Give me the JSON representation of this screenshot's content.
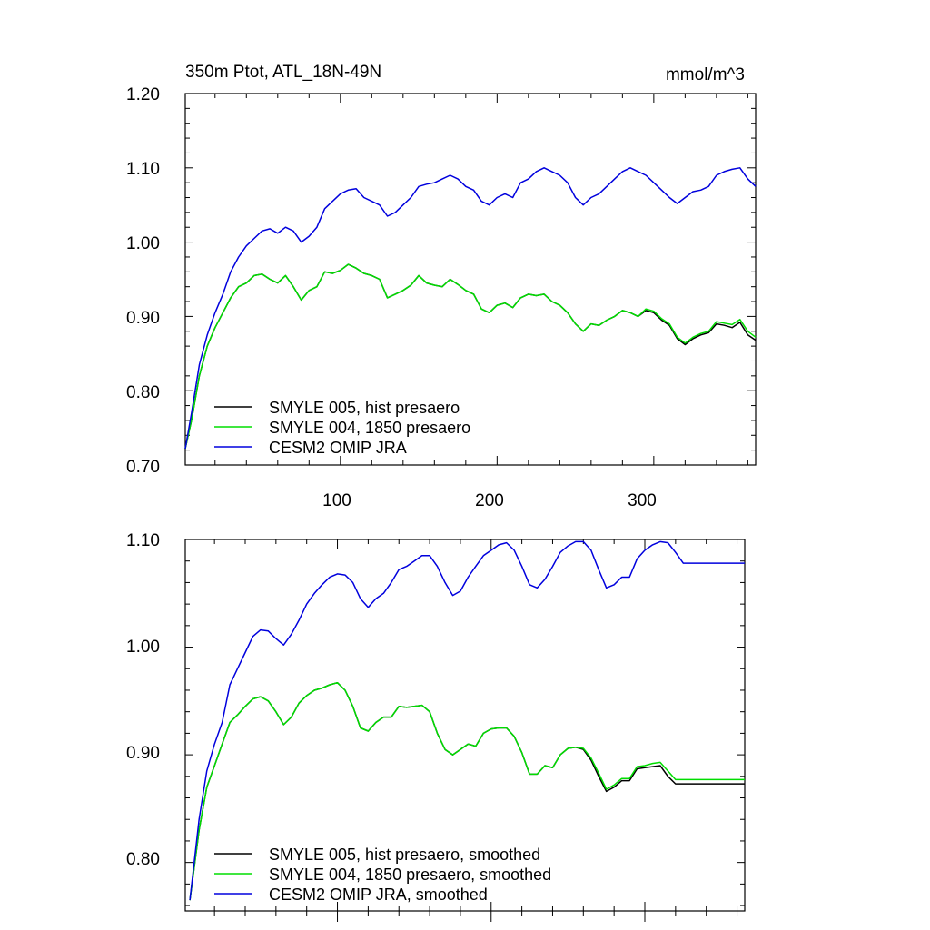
{
  "colors": {
    "hist": "#000000",
    "pre1850": "#00dd00",
    "omip": "#0000dd"
  },
  "chart_data": [
    {
      "type": "line",
      "title": "350m Ptot, ATL_18N-49N",
      "units": "mmol/m^3",
      "xlim": [
        1,
        365
      ],
      "ylim": [
        0.7,
        1.2
      ],
      "yticks": [
        0.7,
        0.8,
        0.9,
        1.0,
        1.1,
        1.2
      ],
      "ytick_labels": [
        "0.70",
        "0.80",
        "0.90",
        "1.00",
        "1.10",
        "1.20"
      ],
      "xticks": [
        100,
        200,
        300
      ],
      "xtick_labels": [
        "100",
        "200",
        "300"
      ],
      "x": [
        1,
        5,
        10,
        15,
        20,
        25,
        30,
        35,
        40,
        45,
        50,
        55,
        60,
        65,
        70,
        75,
        80,
        85,
        90,
        95,
        100,
        105,
        110,
        115,
        120,
        125,
        130,
        135,
        140,
        145,
        150,
        155,
        160,
        165,
        170,
        175,
        180,
        185,
        190,
        195,
        200,
        205,
        210,
        215,
        220,
        225,
        230,
        235,
        240,
        245,
        250,
        255,
        260,
        265,
        270,
        275,
        280,
        285,
        290,
        295,
        300,
        305,
        310,
        315,
        320,
        325,
        330,
        335,
        340,
        345,
        350,
        355,
        360,
        365
      ],
      "series": [
        {
          "name": "SMYLE 005, hist presaero",
          "color_key": "hist",
          "values": [
            0.722,
            0.76,
            0.82,
            0.86,
            0.885,
            0.905,
            0.925,
            0.94,
            0.945,
            0.955,
            0.957,
            0.95,
            0.945,
            0.955,
            0.94,
            0.922,
            0.935,
            0.94,
            0.96,
            0.958,
            0.962,
            0.97,
            0.965,
            0.958,
            0.955,
            0.95,
            0.925,
            0.93,
            0.935,
            0.942,
            0.955,
            0.945,
            0.942,
            0.94,
            0.95,
            0.943,
            0.935,
            0.93,
            0.91,
            0.905,
            0.915,
            0.918,
            0.912,
            0.925,
            0.93,
            0.928,
            0.93,
            0.92,
            0.915,
            0.905,
            0.89,
            0.88,
            0.89,
            0.888,
            0.895,
            0.9,
            0.908,
            0.905,
            0.9,
            0.908,
            0.905,
            0.895,
            0.888,
            0.87,
            0.862,
            0.87,
            0.875,
            0.878,
            0.89,
            0.888,
            0.885,
            0.892,
            0.875,
            0.868
          ]
        },
        {
          "name": "SMYLE 004, 1850 presaero",
          "color_key": "pre1850",
          "values": [
            0.722,
            0.76,
            0.82,
            0.86,
            0.885,
            0.905,
            0.925,
            0.94,
            0.945,
            0.955,
            0.957,
            0.95,
            0.945,
            0.955,
            0.94,
            0.922,
            0.935,
            0.94,
            0.96,
            0.958,
            0.962,
            0.97,
            0.965,
            0.958,
            0.955,
            0.95,
            0.925,
            0.93,
            0.935,
            0.942,
            0.955,
            0.945,
            0.942,
            0.94,
            0.95,
            0.943,
            0.935,
            0.93,
            0.91,
            0.905,
            0.915,
            0.918,
            0.912,
            0.925,
            0.93,
            0.928,
            0.93,
            0.92,
            0.915,
            0.905,
            0.89,
            0.88,
            0.89,
            0.888,
            0.895,
            0.9,
            0.908,
            0.905,
            0.9,
            0.91,
            0.907,
            0.897,
            0.89,
            0.872,
            0.864,
            0.872,
            0.877,
            0.88,
            0.893,
            0.891,
            0.889,
            0.896,
            0.88,
            0.872
          ]
        },
        {
          "name": "CESM2 OMIP JRA",
          "color_key": "omip",
          "values": [
            0.722,
            0.77,
            0.835,
            0.875,
            0.905,
            0.93,
            0.96,
            0.98,
            0.995,
            1.005,
            1.015,
            1.018,
            1.012,
            1.02,
            1.015,
            1.0,
            1.008,
            1.02,
            1.045,
            1.055,
            1.065,
            1.07,
            1.072,
            1.06,
            1.055,
            1.05,
            1.035,
            1.04,
            1.05,
            1.06,
            1.075,
            1.078,
            1.08,
            1.085,
            1.09,
            1.085,
            1.075,
            1.07,
            1.055,
            1.05,
            1.06,
            1.065,
            1.06,
            1.08,
            1.085,
            1.095,
            1.1,
            1.095,
            1.09,
            1.08,
            1.06,
            1.05,
            1.06,
            1.065,
            1.075,
            1.085,
            1.095,
            1.1,
            1.095,
            1.09,
            1.08,
            1.07,
            1.06,
            1.052,
            1.06,
            1.068,
            1.07,
            1.075,
            1.09,
            1.095,
            1.098,
            1.1,
            1.085,
            1.075
          ]
        }
      ],
      "legend": [
        "SMYLE 005, hist presaero",
        "SMYLE 004, 1850 presaero",
        "CESM2 OMIP JRA"
      ],
      "legend_position": "bottom-left"
    },
    {
      "type": "line",
      "title": "",
      "xlim": [
        1,
        365
      ],
      "ylim": [
        0.755,
        1.1
      ],
      "yticks": [
        0.8,
        0.9,
        1.0,
        1.1
      ],
      "ytick_labels": [
        "0.80",
        "0.90",
        "1.00",
        "1.10"
      ],
      "x": [
        4,
        10,
        15,
        20,
        25,
        30,
        35,
        40,
        45,
        50,
        55,
        60,
        65,
        70,
        75,
        80,
        85,
        90,
        95,
        100,
        105,
        110,
        115,
        120,
        125,
        130,
        135,
        140,
        145,
        150,
        155,
        160,
        165,
        170,
        175,
        180,
        185,
        190,
        195,
        200,
        205,
        210,
        215,
        220,
        225,
        230,
        235,
        240,
        245,
        250,
        255,
        260,
        265,
        270,
        275,
        280,
        285,
        290,
        295,
        300,
        305,
        310,
        315,
        320,
        325,
        330,
        335,
        340,
        345,
        350,
        355,
        360,
        365
      ],
      "series": [
        {
          "name": "SMYLE 005, hist presaero, smoothed",
          "color_key": "hist",
          "values": [
            0.765,
            0.83,
            0.87,
            0.89,
            0.91,
            0.93,
            0.937,
            0.945,
            0.952,
            0.954,
            0.95,
            0.94,
            0.928,
            0.935,
            0.948,
            0.955,
            0.96,
            0.962,
            0.965,
            0.967,
            0.96,
            0.945,
            0.925,
            0.922,
            0.93,
            0.935,
            0.935,
            0.945,
            0.944,
            0.945,
            0.946,
            0.94,
            0.92,
            0.905,
            0.9,
            0.905,
            0.91,
            0.908,
            0.92,
            0.924,
            0.925,
            0.925,
            0.917,
            0.902,
            0.882,
            0.882,
            0.89,
            0.888,
            0.9,
            0.906,
            0.907,
            0.905,
            0.895,
            0.88,
            0.866,
            0.87,
            0.876,
            0.876,
            0.887,
            0.888,
            0.889,
            0.89,
            0.88,
            0.873,
            0.873,
            0.873,
            0.873,
            0.873,
            0.873,
            0.873,
            0.873,
            0.873,
            0.873
          ]
        },
        {
          "name": "SMYLE 004, 1850 presaero, smoothed",
          "color_key": "pre1850",
          "values": [
            0.765,
            0.83,
            0.87,
            0.89,
            0.91,
            0.93,
            0.937,
            0.945,
            0.952,
            0.954,
            0.95,
            0.94,
            0.928,
            0.935,
            0.948,
            0.955,
            0.96,
            0.962,
            0.965,
            0.967,
            0.96,
            0.945,
            0.925,
            0.922,
            0.93,
            0.935,
            0.935,
            0.945,
            0.944,
            0.945,
            0.946,
            0.94,
            0.92,
            0.905,
            0.9,
            0.905,
            0.91,
            0.908,
            0.92,
            0.924,
            0.925,
            0.925,
            0.917,
            0.902,
            0.882,
            0.882,
            0.89,
            0.888,
            0.9,
            0.906,
            0.907,
            0.906,
            0.897,
            0.883,
            0.868,
            0.872,
            0.878,
            0.878,
            0.889,
            0.89,
            0.892,
            0.893,
            0.885,
            0.877,
            0.877,
            0.877,
            0.877,
            0.877,
            0.877,
            0.877,
            0.877,
            0.877,
            0.877
          ]
        },
        {
          "name": "CESM2 OMIP JRA, smoothed",
          "color_key": "omip",
          "values": [
            0.765,
            0.84,
            0.885,
            0.91,
            0.93,
            0.965,
            0.98,
            0.995,
            1.01,
            1.016,
            1.015,
            1.008,
            1.002,
            1.012,
            1.025,
            1.04,
            1.05,
            1.058,
            1.065,
            1.068,
            1.067,
            1.06,
            1.045,
            1.037,
            1.045,
            1.05,
            1.06,
            1.072,
            1.075,
            1.08,
            1.085,
            1.085,
            1.075,
            1.06,
            1.048,
            1.052,
            1.065,
            1.075,
            1.085,
            1.09,
            1.095,
            1.097,
            1.09,
            1.075,
            1.058,
            1.055,
            1.063,
            1.075,
            1.088,
            1.094,
            1.098,
            1.098,
            1.09,
            1.072,
            1.055,
            1.058,
            1.065,
            1.065,
            1.082,
            1.09,
            1.095,
            1.098,
            1.097,
            1.088,
            1.078,
            1.078,
            1.078,
            1.078,
            1.078,
            1.078,
            1.078,
            1.078,
            1.078
          ]
        }
      ],
      "legend": [
        "SMYLE 005, hist presaero, smoothed",
        "SMYLE 004, 1850 presaero, smoothed",
        "CESM2 OMIP JRA, smoothed"
      ],
      "legend_position": "bottom-left"
    }
  ]
}
